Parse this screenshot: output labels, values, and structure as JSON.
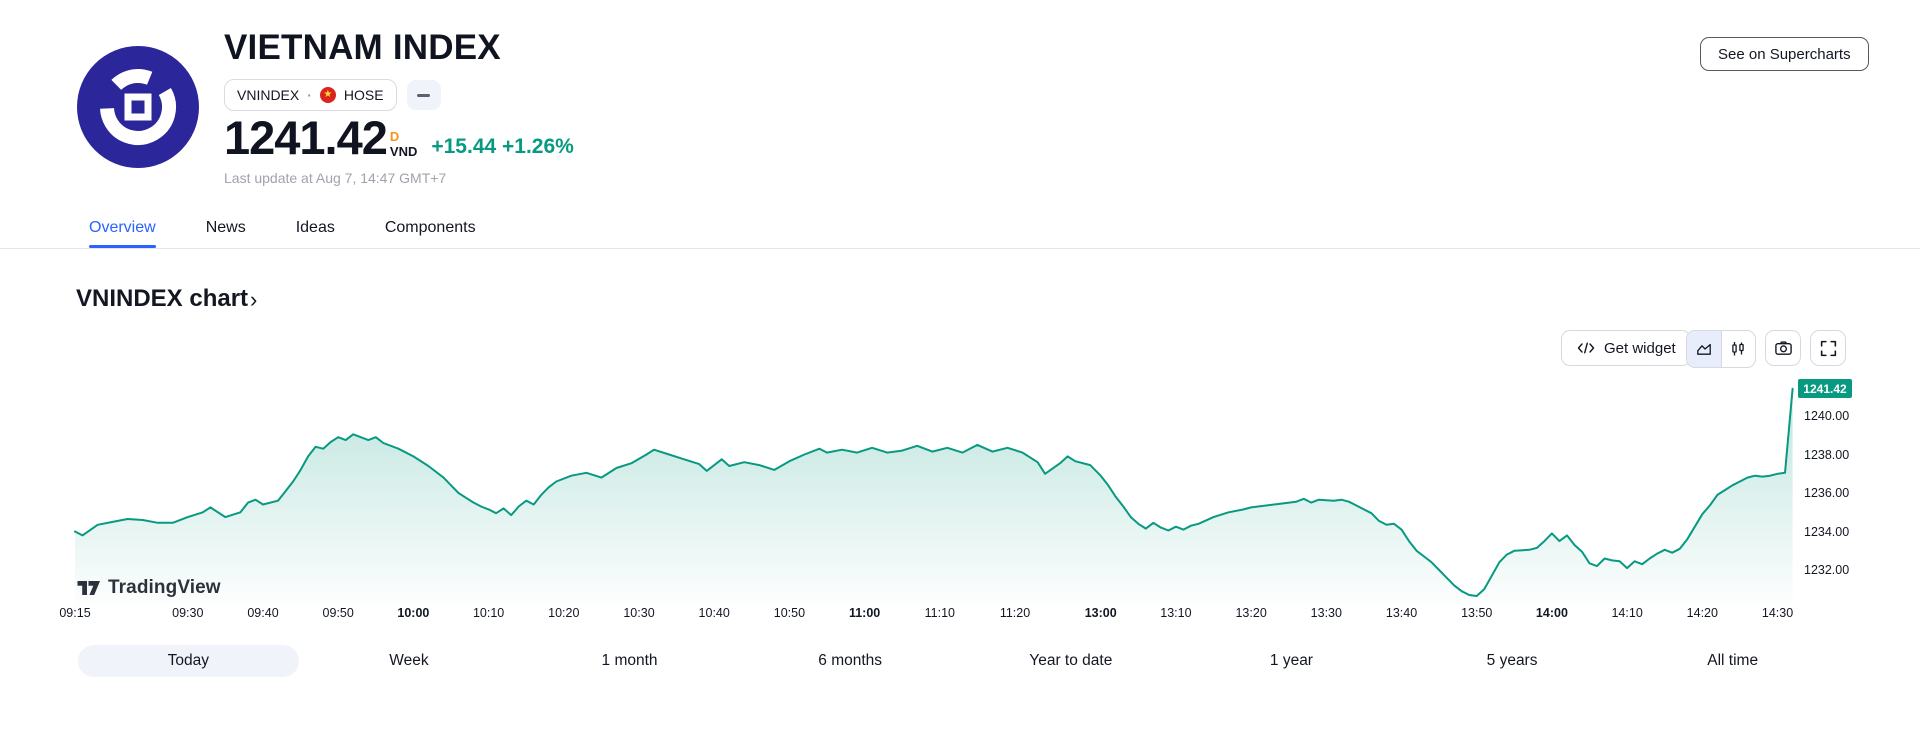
{
  "header": {
    "title": "VIETNAM INDEX",
    "symbol": "VNINDEX",
    "separator": "·",
    "exchange": "HOSE",
    "price": "1241.42",
    "interval_badge": "D",
    "currency": "VND",
    "change": "+15.44 +1.26%",
    "last_update": "Last update at Aug 7, 14:47 GMT+7",
    "supercharts_button": "See on Supercharts"
  },
  "tabs": [
    {
      "label": "Overview",
      "active": true
    },
    {
      "label": "News",
      "active": false
    },
    {
      "label": "Ideas",
      "active": false
    },
    {
      "label": "Components",
      "active": false
    }
  ],
  "section": {
    "heading": "VNINDEX chart",
    "chevron": "›"
  },
  "toolbar": {
    "get_widget_label": "Get widget",
    "icons": [
      "code-icon",
      "area-chart-icon",
      "candles-icon",
      "camera-icon",
      "fullscreen-icon"
    ]
  },
  "watermark_text": "TradingView",
  "range_buttons": [
    {
      "label": "Today",
      "active": true
    },
    {
      "label": "Week",
      "active": false
    },
    {
      "label": "1 month",
      "active": false
    },
    {
      "label": "6 months",
      "active": false
    },
    {
      "label": "Year to date",
      "active": false
    },
    {
      "label": "1 year",
      "active": false
    },
    {
      "label": "5 years",
      "active": false
    },
    {
      "label": "All time",
      "active": false
    }
  ],
  "colors": {
    "accent_blue": "#2962ff",
    "up_green": "#089981",
    "interval_orange": "#f7941d",
    "text_dark": "#131722",
    "text_gray": "#a0a3ad",
    "flag_red": "#da251d",
    "flag_star_yellow": "#ffd83d",
    "logo_indigo": "#2b2699"
  },
  "chart_data": {
    "type": "area",
    "title": "VNINDEX intraday (Today, 1-minute)",
    "line_color": "#089981",
    "grid": false,
    "legend": false,
    "last_price": 1241.42,
    "last_price_label": "1241.42",
    "ylim": [
      1230.2,
      1242.0
    ],
    "session_break": [
      "11:30",
      "13:00"
    ],
    "y_axis": {
      "tick_values": [
        1240,
        1238,
        1236,
        1234,
        1232
      ],
      "format": "0.00"
    },
    "x_axis": {
      "ticks": [
        {
          "label": "09:15",
          "bold": false
        },
        {
          "label": "09:30",
          "bold": false
        },
        {
          "label": "09:40",
          "bold": false
        },
        {
          "label": "09:50",
          "bold": false
        },
        {
          "label": "10:00",
          "bold": true
        },
        {
          "label": "10:10",
          "bold": false
        },
        {
          "label": "10:20",
          "bold": false
        },
        {
          "label": "10:30",
          "bold": false
        },
        {
          "label": "10:40",
          "bold": false
        },
        {
          "label": "10:50",
          "bold": false
        },
        {
          "label": "11:00",
          "bold": true
        },
        {
          "label": "11:10",
          "bold": false
        },
        {
          "label": "11:20",
          "bold": false
        },
        {
          "label": "13:00",
          "bold": true
        },
        {
          "label": "13:10",
          "bold": false
        },
        {
          "label": "13:20",
          "bold": false
        },
        {
          "label": "13:30",
          "bold": false
        },
        {
          "label": "13:40",
          "bold": false
        },
        {
          "label": "13:50",
          "bold": false
        },
        {
          "label": "14:00",
          "bold": true
        },
        {
          "label": "14:10",
          "bold": false
        },
        {
          "label": "14:20",
          "bold": false
        },
        {
          "label": "14:30",
          "bold": false
        }
      ]
    },
    "points": [
      [
        "09:15",
        1234.0
      ],
      [
        "09:16",
        1233.8
      ],
      [
        "09:18",
        1234.35
      ],
      [
        "09:20",
        1234.5
      ],
      [
        "09:22",
        1234.65
      ],
      [
        "09:24",
        1234.6
      ],
      [
        "09:26",
        1234.45
      ],
      [
        "09:28",
        1234.45
      ],
      [
        "09:30",
        1234.75
      ],
      [
        "09:32",
        1235.0
      ],
      [
        "09:33",
        1235.25
      ],
      [
        "09:35",
        1234.75
      ],
      [
        "09:37",
        1235.0
      ],
      [
        "09:38",
        1235.5
      ],
      [
        "09:39",
        1235.65
      ],
      [
        "09:40",
        1235.4
      ],
      [
        "09:42",
        1235.6
      ],
      [
        "09:43",
        1236.1
      ],
      [
        "09:44",
        1236.6
      ],
      [
        "09:45",
        1237.2
      ],
      [
        "09:46",
        1237.9
      ],
      [
        "09:47",
        1238.4
      ],
      [
        "09:48",
        1238.3
      ],
      [
        "09:49",
        1238.65
      ],
      [
        "09:50",
        1238.9
      ],
      [
        "09:51",
        1238.75
      ],
      [
        "09:52",
        1239.05
      ],
      [
        "09:53",
        1238.9
      ],
      [
        "09:54",
        1238.75
      ],
      [
        "09:55",
        1238.9
      ],
      [
        "09:56",
        1238.6
      ],
      [
        "09:58",
        1238.3
      ],
      [
        "10:00",
        1237.9
      ],
      [
        "10:02",
        1237.4
      ],
      [
        "10:04",
        1236.8
      ],
      [
        "10:05",
        1236.4
      ],
      [
        "10:06",
        1236.0
      ],
      [
        "10:07",
        1235.75
      ],
      [
        "10:08",
        1235.5
      ],
      [
        "10:09",
        1235.3
      ],
      [
        "10:10",
        1235.15
      ],
      [
        "10:11",
        1234.95
      ],
      [
        "10:12",
        1235.2
      ],
      [
        "10:13",
        1234.85
      ],
      [
        "10:14",
        1235.3
      ],
      [
        "10:15",
        1235.6
      ],
      [
        "10:16",
        1235.4
      ],
      [
        "10:17",
        1235.9
      ],
      [
        "10:18",
        1236.3
      ],
      [
        "10:19",
        1236.6
      ],
      [
        "10:21",
        1236.9
      ],
      [
        "10:23",
        1237.05
      ],
      [
        "10:25",
        1236.8
      ],
      [
        "10:27",
        1237.3
      ],
      [
        "10:29",
        1237.55
      ],
      [
        "10:31",
        1238.0
      ],
      [
        "10:32",
        1238.25
      ],
      [
        "10:34",
        1238.0
      ],
      [
        "10:36",
        1237.75
      ],
      [
        "10:38",
        1237.5
      ],
      [
        "10:39",
        1237.15
      ],
      [
        "10:41",
        1237.75
      ],
      [
        "10:42",
        1237.4
      ],
      [
        "10:44",
        1237.6
      ],
      [
        "10:46",
        1237.45
      ],
      [
        "10:48",
        1237.2
      ],
      [
        "10:50",
        1237.65
      ],
      [
        "10:52",
        1238.0
      ],
      [
        "10:54",
        1238.3
      ],
      [
        "10:55",
        1238.1
      ],
      [
        "10:57",
        1238.25
      ],
      [
        "10:59",
        1238.1
      ],
      [
        "11:01",
        1238.35
      ],
      [
        "11:03",
        1238.1
      ],
      [
        "11:05",
        1238.2
      ],
      [
        "11:07",
        1238.45
      ],
      [
        "11:09",
        1238.15
      ],
      [
        "11:11",
        1238.35
      ],
      [
        "11:13",
        1238.1
      ],
      [
        "11:15",
        1238.5
      ],
      [
        "11:17",
        1238.15
      ],
      [
        "11:19",
        1238.35
      ],
      [
        "11:21",
        1238.1
      ],
      [
        "11:23",
        1237.6
      ],
      [
        "11:24",
        1237.0
      ],
      [
        "11:26",
        1237.55
      ],
      [
        "11:27",
        1237.9
      ],
      [
        "11:28",
        1237.65
      ],
      [
        "11:30",
        1237.45
      ],
      [
        "13:00",
        1236.9
      ],
      [
        "13:01",
        1236.4
      ],
      [
        "13:02",
        1235.8
      ],
      [
        "13:03",
        1235.3
      ],
      [
        "13:04",
        1234.75
      ],
      [
        "13:05",
        1234.4
      ],
      [
        "13:06",
        1234.15
      ],
      [
        "13:07",
        1234.45
      ],
      [
        "13:08",
        1234.2
      ],
      [
        "13:09",
        1234.05
      ],
      [
        "13:10",
        1234.25
      ],
      [
        "13:11",
        1234.1
      ],
      [
        "13:12",
        1234.3
      ],
      [
        "13:13",
        1234.4
      ],
      [
        "13:15",
        1234.75
      ],
      [
        "13:17",
        1235.0
      ],
      [
        "13:19",
        1235.15
      ],
      [
        "13:20",
        1235.25
      ],
      [
        "13:22",
        1235.35
      ],
      [
        "13:24",
        1235.45
      ],
      [
        "13:26",
        1235.55
      ],
      [
        "13:27",
        1235.7
      ],
      [
        "13:28",
        1235.5
      ],
      [
        "13:29",
        1235.65
      ],
      [
        "13:31",
        1235.6
      ],
      [
        "13:32",
        1235.65
      ],
      [
        "13:33",
        1235.55
      ],
      [
        "13:34",
        1235.35
      ],
      [
        "13:35",
        1235.15
      ],
      [
        "13:36",
        1234.95
      ],
      [
        "13:37",
        1234.55
      ],
      [
        "13:38",
        1234.35
      ],
      [
        "13:39",
        1234.4
      ],
      [
        "13:40",
        1234.1
      ],
      [
        "13:41",
        1233.5
      ],
      [
        "13:42",
        1233.0
      ],
      [
        "13:43",
        1232.7
      ],
      [
        "13:44",
        1232.4
      ],
      [
        "13:45",
        1232.0
      ],
      [
        "13:46",
        1231.6
      ],
      [
        "13:47",
        1231.2
      ],
      [
        "13:48",
        1230.9
      ],
      [
        "13:49",
        1230.7
      ],
      [
        "13:50",
        1230.65
      ],
      [
        "13:51",
        1231.0
      ],
      [
        "13:52",
        1231.7
      ],
      [
        "13:53",
        1232.4
      ],
      [
        "13:54",
        1232.8
      ],
      [
        "13:55",
        1233.0
      ],
      [
        "13:57",
        1233.05
      ],
      [
        "13:58",
        1233.15
      ],
      [
        "13:59",
        1233.5
      ],
      [
        "14:00",
        1233.9
      ],
      [
        "14:01",
        1233.5
      ],
      [
        "14:02",
        1233.8
      ],
      [
        "14:03",
        1233.3
      ],
      [
        "14:04",
        1232.95
      ],
      [
        "14:05",
        1232.35
      ],
      [
        "14:06",
        1232.2
      ],
      [
        "14:07",
        1232.6
      ],
      [
        "14:08",
        1232.5
      ],
      [
        "14:09",
        1232.45
      ],
      [
        "14:10",
        1232.1
      ],
      [
        "14:11",
        1232.45
      ],
      [
        "14:12",
        1232.3
      ],
      [
        "14:13",
        1232.6
      ],
      [
        "14:14",
        1232.85
      ],
      [
        "14:15",
        1233.05
      ],
      [
        "14:16",
        1232.9
      ],
      [
        "14:17",
        1233.1
      ],
      [
        "14:18",
        1233.6
      ],
      [
        "14:19",
        1234.25
      ],
      [
        "14:20",
        1234.9
      ],
      [
        "14:21",
        1235.35
      ],
      [
        "14:22",
        1235.9
      ],
      [
        "14:23",
        1236.15
      ],
      [
        "14:24",
        1236.4
      ],
      [
        "14:25",
        1236.6
      ],
      [
        "14:26",
        1236.8
      ],
      [
        "14:27",
        1236.9
      ],
      [
        "14:28",
        1236.85
      ],
      [
        "14:29",
        1236.9
      ],
      [
        "14:30",
        1237.0
      ],
      [
        "14:31",
        1237.05
      ],
      [
        "14:32",
        1241.42
      ]
    ]
  }
}
